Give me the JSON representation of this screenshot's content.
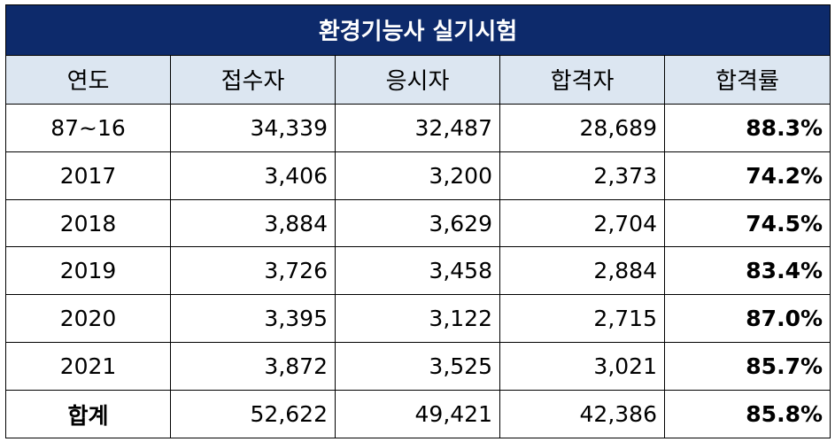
{
  "title": "환경기능사 실기시험",
  "headers": [
    "연도",
    "접수자",
    "응시자",
    "합격자",
    "합격률"
  ],
  "rows": [
    {
      "year": "87~16",
      "applicants": "34,339",
      "examinees": "32,487",
      "passers": "28,689",
      "rate": "88.3%"
    },
    {
      "year": "2017",
      "applicants": "3,406",
      "examinees": "3,200",
      "passers": "2,373",
      "rate": "74.2%"
    },
    {
      "year": "2018",
      "applicants": "3,884",
      "examinees": "3,629",
      "passers": "2,704",
      "rate": "74.5%"
    },
    {
      "year": "2019",
      "applicants": "3,726",
      "examinees": "3,458",
      "passers": "2,884",
      "rate": "83.4%"
    },
    {
      "year": "2020",
      "applicants": "3,395",
      "examinees": "3,122",
      "passers": "2,715",
      "rate": "87.0%"
    },
    {
      "year": "2021",
      "applicants": "3,872",
      "examinees": "3,525",
      "passers": "3,021",
      "rate": "85.7%"
    }
  ],
  "total": {
    "year": "합계",
    "applicants": "52,622",
    "examinees": "49,421",
    "passers": "42,386",
    "rate": "85.8%"
  },
  "colors": {
    "title_bg": "#0d2a6b",
    "header_bg": "#dce6f1",
    "title_text": "#ffffff"
  }
}
